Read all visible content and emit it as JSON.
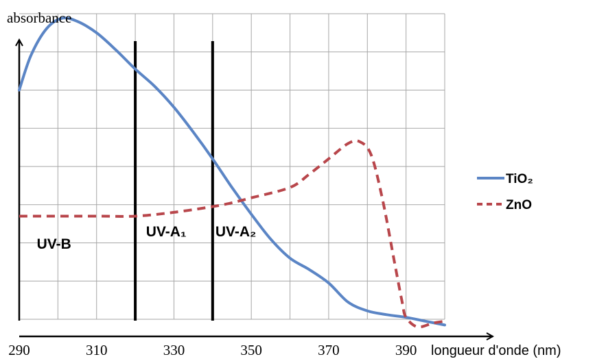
{
  "chart_data": {
    "type": "line",
    "title": "",
    "xlabel": "longueur d'onde (nm)",
    "ylabel": "absorbance",
    "xlim": [
      290,
      400
    ],
    "ylim": [
      0,
      8
    ],
    "x_ticks": [
      290,
      310,
      330,
      350,
      370,
      390
    ],
    "grid": true,
    "legend_position": "right",
    "series": [
      {
        "name": "TiO₂",
        "style": "solid",
        "color": "#5b85c5",
        "points": [
          [
            290,
            6.0
          ],
          [
            293,
            6.9
          ],
          [
            297,
            7.6
          ],
          [
            301,
            7.88
          ],
          [
            305,
            7.8
          ],
          [
            310,
            7.5
          ],
          [
            315,
            7.05
          ],
          [
            320,
            6.55
          ],
          [
            325,
            6.1
          ],
          [
            330,
            5.55
          ],
          [
            335,
            4.9
          ],
          [
            340,
            4.2
          ],
          [
            345,
            3.45
          ],
          [
            350,
            2.75
          ],
          [
            355,
            2.1
          ],
          [
            360,
            1.6
          ],
          [
            365,
            1.3
          ],
          [
            370,
            0.95
          ],
          [
            375,
            0.45
          ],
          [
            380,
            0.22
          ],
          [
            385,
            0.12
          ],
          [
            390,
            0.05
          ],
          [
            395,
            -0.05
          ],
          [
            400,
            -0.15
          ]
        ]
      },
      {
        "name": "ZnO",
        "style": "dashed",
        "color": "#b8464b",
        "points": [
          [
            290,
            2.7
          ],
          [
            310,
            2.7
          ],
          [
            320,
            2.7
          ],
          [
            330,
            2.8
          ],
          [
            340,
            2.95
          ],
          [
            345,
            3.05
          ],
          [
            350,
            3.18
          ],
          [
            360,
            3.45
          ],
          [
            365,
            3.8
          ],
          [
            370,
            4.2
          ],
          [
            375,
            4.6
          ],
          [
            378,
            4.65
          ],
          [
            381,
            4.3
          ],
          [
            384,
            3.1
          ],
          [
            387,
            1.5
          ],
          [
            389,
            0.45
          ],
          [
            390,
            0.05
          ],
          [
            393,
            -0.2
          ],
          [
            397,
            -0.1
          ],
          [
            400,
            -0.05
          ]
        ]
      }
    ],
    "vertical_lines": [
      {
        "x": 320,
        "color": "#000000"
      },
      {
        "x": 340,
        "color": "#000000"
      }
    ],
    "regions": [
      {
        "label": "UV-B",
        "x": 299
      },
      {
        "label": "UV-A₁",
        "x": 328
      },
      {
        "label": "UV-A₂",
        "x": 346
      }
    ],
    "gridline_color": "#a6a6a6"
  }
}
